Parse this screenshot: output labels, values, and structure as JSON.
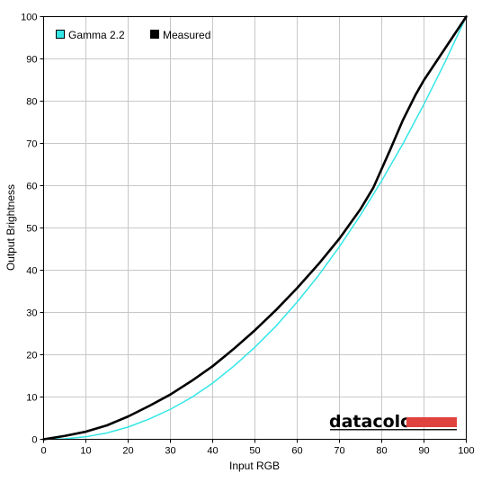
{
  "chart_data": {
    "type": "line",
    "title": "",
    "xlabel": "Input RGB",
    "ylabel": "Output Brightness",
    "xlim": [
      0,
      100
    ],
    "ylim": [
      0,
      100
    ],
    "xticks": [
      "0",
      "10",
      "20",
      "30",
      "40",
      "50",
      "60",
      "70",
      "80",
      "90",
      "100"
    ],
    "yticks": [
      "0",
      "10",
      "20",
      "30",
      "40",
      "50",
      "60",
      "70",
      "80",
      "90",
      "100"
    ],
    "grid": true,
    "legend_position": "top-left",
    "series": [
      {
        "name": "Gamma 2.2",
        "color": "#33e6e6",
        "x": [
          0,
          5,
          10,
          15,
          20,
          25,
          30,
          35,
          40,
          45,
          50,
          55,
          60,
          65,
          70,
          75,
          80,
          85,
          90,
          95,
          100
        ],
        "y": [
          0,
          0.1,
          0.6,
          1.5,
          2.9,
          4.8,
          7.1,
          9.9,
          13.3,
          17.3,
          21.8,
          26.8,
          32.5,
          38.7,
          45.6,
          53.1,
          61.2,
          69.9,
          79.3,
          89.3,
          100
        ]
      },
      {
        "name": "Measured",
        "color": "#000000",
        "x": [
          0,
          5,
          10,
          15,
          20,
          25,
          30,
          35,
          40,
          45,
          50,
          55,
          60,
          65,
          70,
          75,
          78,
          80,
          82,
          85,
          88,
          90,
          95,
          100
        ],
        "y": [
          0,
          0.8,
          1.8,
          3.3,
          5.4,
          7.9,
          10.6,
          13.8,
          17.3,
          21.4,
          25.8,
          30.6,
          35.8,
          41.4,
          47.5,
          54.5,
          59.5,
          64.0,
          68.5,
          75.5,
          81.5,
          85.0,
          92.5,
          100
        ]
      }
    ]
  },
  "watermark": {
    "text": "datacolor",
    "bar_color": "#e0423d"
  }
}
